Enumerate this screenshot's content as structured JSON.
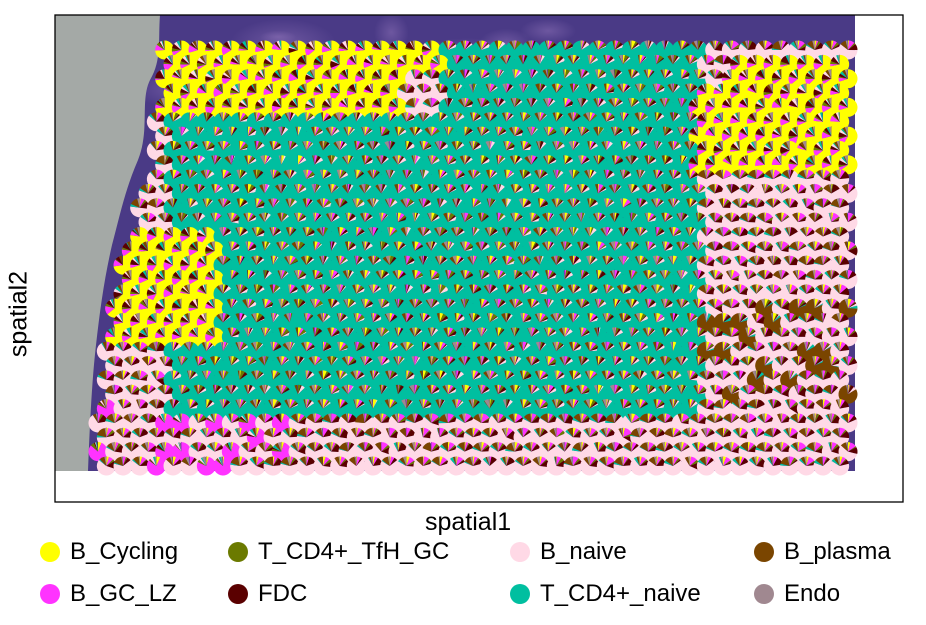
{
  "chart_data": {
    "type": "scatter",
    "subtype": "spatial-pie-scatter",
    "title": "",
    "xlabel": "spatial1",
    "ylabel": "spatial2",
    "grid": false,
    "axis_ticks": false,
    "background_image": "H&E tissue section (purple stained lymph node) with grey slide background on left",
    "legend_position": "bottom",
    "legend_columns": 4,
    "legend": [
      {
        "name": "B_Cycling",
        "color": "#ffff00"
      },
      {
        "name": "B_GC_LZ",
        "color": "#ff33ff"
      },
      {
        "name": "T_CD4+_TfH_GC",
        "color": "#6b7a00"
      },
      {
        "name": "FDC",
        "color": "#5a0000"
      },
      {
        "name": "B_naive",
        "color": "#ffd9e6"
      },
      {
        "name": "T_CD4+_naive",
        "color": "#00bfa0"
      },
      {
        "name": "B_plasma",
        "color": "#7a4500"
      },
      {
        "name": "Endo",
        "color": "#a08890"
      }
    ],
    "spot_grid": {
      "columns": 46,
      "rows": 30,
      "pattern": "hexagonal"
    },
    "regions": [
      {
        "name": "B_Cycling dominant",
        "location": "upper-left",
        "dominant": "B_Cycling"
      },
      {
        "name": "B_Cycling dominant",
        "location": "left-middle",
        "dominant": "B_Cycling"
      },
      {
        "name": "B_Cycling dominant",
        "location": "upper-right",
        "dominant": "B_Cycling"
      },
      {
        "name": "T_CD4+_naive dominant",
        "location": "center",
        "dominant": "T_CD4+_naive"
      },
      {
        "name": "mixed B_naive / B_plasma / FDC",
        "location": "right and bottom",
        "dominant": "B_naive"
      }
    ]
  }
}
